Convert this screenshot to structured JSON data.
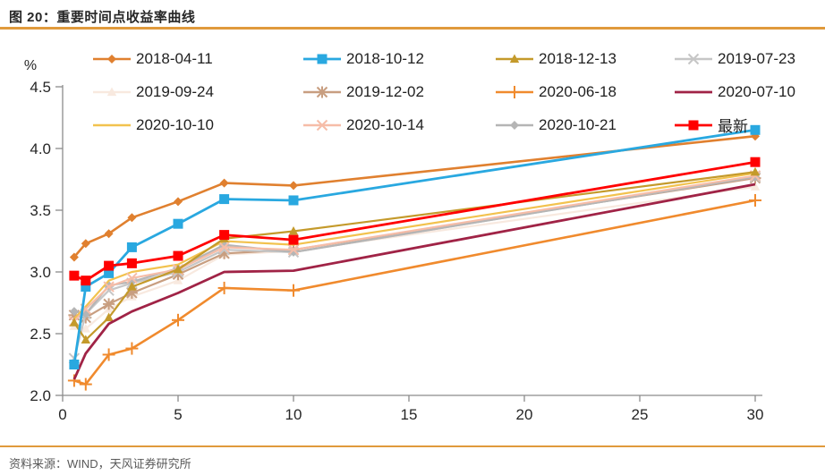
{
  "figure": {
    "title": "图 20：重要时间点收益率曲线",
    "source": "资料来源：WIND，天风证券研究所",
    "accent_color": "#E09A3C"
  },
  "chart_data": {
    "type": "line",
    "title": "重要时间点收益率曲线",
    "ylabel": "%",
    "xlabel": "",
    "x": [
      0.5,
      1,
      2,
      3,
      5,
      7,
      10,
      30
    ],
    "xlim": [
      0,
      30
    ],
    "ylim": [
      2.0,
      4.5
    ],
    "x_ticks": [
      "0",
      "5",
      "10",
      "15",
      "20",
      "25",
      "30"
    ],
    "y_ticks": [
      "2.0",
      "2.5",
      "3.0",
      "3.5",
      "4.0",
      "4.5"
    ],
    "grid": false,
    "legend_position": "top",
    "series": [
      {
        "name": "2018-04-11",
        "color": "#E0802F",
        "marker": "diamond",
        "values": [
          3.12,
          3.23,
          3.31,
          3.44,
          3.57,
          3.72,
          3.7,
          4.1
        ]
      },
      {
        "name": "2018-10-12",
        "color": "#29A8E0",
        "marker": "square",
        "values": [
          2.25,
          2.88,
          2.99,
          3.2,
          3.39,
          3.59,
          3.58,
          4.15
        ]
      },
      {
        "name": "2018-12-13",
        "color": "#C49A2B",
        "marker": "triangle",
        "values": [
          2.59,
          2.45,
          2.63,
          2.88,
          3.02,
          3.27,
          3.33,
          3.81
        ]
      },
      {
        "name": "2019-07-23",
        "color": "#C6C6C6",
        "marker": "x",
        "values": [
          2.3,
          2.66,
          2.85,
          2.91,
          3.0,
          3.18,
          3.16,
          3.77
        ]
      },
      {
        "name": "2019-09-24",
        "color": "#F8E9DF",
        "marker": "triangle",
        "values": [
          2.56,
          2.54,
          2.7,
          2.8,
          2.93,
          3.14,
          3.17,
          3.69
        ]
      },
      {
        "name": "2019-12-02",
        "color": "#C89E80",
        "marker": "asterisk",
        "values": [
          2.65,
          2.63,
          2.74,
          2.83,
          2.98,
          3.15,
          3.18,
          3.76
        ]
      },
      {
        "name": "2020-06-18",
        "color": "#F08A2D",
        "marker": "plus",
        "values": [
          2.12,
          2.09,
          2.33,
          2.38,
          2.61,
          2.87,
          2.85,
          3.58
        ]
      },
      {
        "name": "2020-07-10",
        "color": "#A02346",
        "marker": "none",
        "values": [
          2.13,
          2.34,
          2.58,
          2.68,
          2.83,
          3.0,
          3.01,
          3.71
        ]
      },
      {
        "name": "2020-10-10",
        "color": "#F2C24E",
        "marker": "none",
        "values": [
          2.62,
          2.72,
          2.93,
          3.0,
          3.06,
          3.25,
          3.22,
          3.8
        ]
      },
      {
        "name": "2020-10-14",
        "color": "#F6BDA8",
        "marker": "x",
        "values": [
          2.6,
          2.7,
          2.88,
          2.95,
          3.02,
          3.2,
          3.18,
          3.78
        ]
      },
      {
        "name": "2020-10-21",
        "color": "#B5B5B5",
        "marker": "diamond",
        "values": [
          2.68,
          2.66,
          2.89,
          2.92,
          3.03,
          3.22,
          3.16,
          3.77
        ]
      },
      {
        "name": "最新",
        "color": "#FF0000",
        "marker": "square",
        "values": [
          2.97,
          2.93,
          3.05,
          3.07,
          3.13,
          3.3,
          3.26,
          3.89
        ]
      }
    ]
  }
}
